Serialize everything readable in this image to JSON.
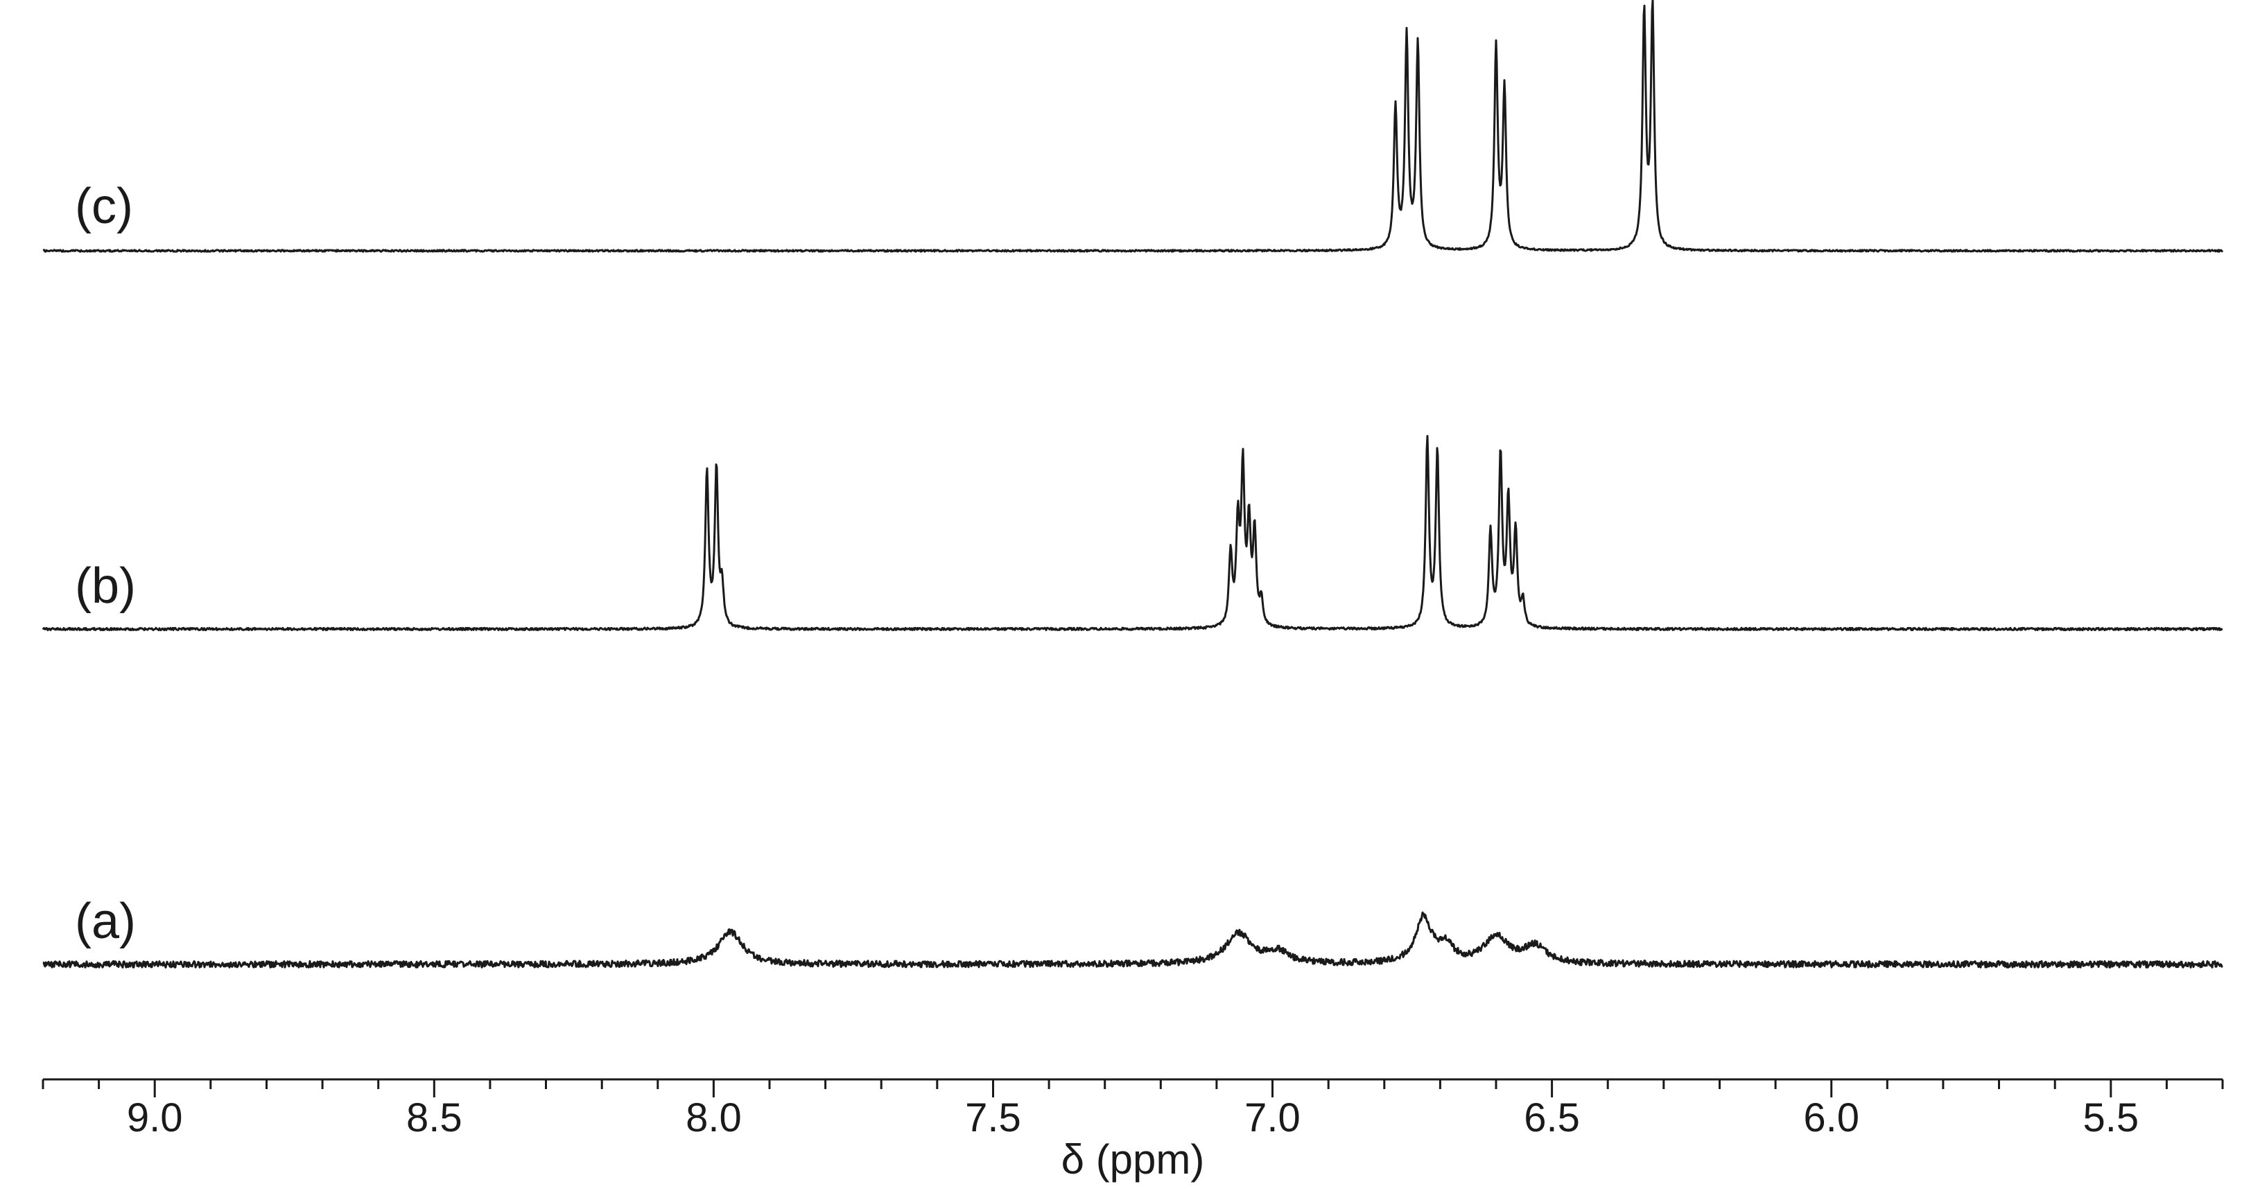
{
  "chart_data": {
    "type": "line",
    "xlabel": "δ (ppm)",
    "xlim": [
      9.2,
      5.3
    ],
    "x_reversed": true,
    "x_ticks": [
      "9.0",
      "8.5",
      "8.0",
      "7.5",
      "7.0",
      "6.5",
      "6.0",
      "5.5"
    ],
    "series": [
      {
        "name": "(c)",
        "peaks": [
          {
            "x": 6.78,
            "h": 0.59,
            "w": 0.0035
          },
          {
            "x": 6.76,
            "h": 0.88,
            "w": 0.0035
          },
          {
            "x": 6.74,
            "h": 0.85,
            "w": 0.0035
          },
          {
            "x": 6.6,
            "h": 0.84,
            "w": 0.0035
          },
          {
            "x": 6.585,
            "h": 0.66,
            "w": 0.0035
          },
          {
            "x": 6.335,
            "h": 0.98,
            "w": 0.0035
          },
          {
            "x": 6.32,
            "h": 1.0,
            "w": 0.0035
          }
        ]
      },
      {
        "name": "(b)",
        "peaks": [
          {
            "x": 8.012,
            "h": 0.73,
            "w": 0.0035
          },
          {
            "x": 7.995,
            "h": 0.74,
            "w": 0.0035
          },
          {
            "x": 7.985,
            "h": 0.18,
            "w": 0.0035
          },
          {
            "x": 7.075,
            "h": 0.34,
            "w": 0.0035
          },
          {
            "x": 7.062,
            "h": 0.46,
            "w": 0.0035
          },
          {
            "x": 7.053,
            "h": 0.72,
            "w": 0.0035
          },
          {
            "x": 7.042,
            "h": 0.46,
            "w": 0.0035
          },
          {
            "x": 7.032,
            "h": 0.43,
            "w": 0.0035
          },
          {
            "x": 7.02,
            "h": 0.12,
            "w": 0.0035
          },
          {
            "x": 6.723,
            "h": 0.88,
            "w": 0.0035
          },
          {
            "x": 6.705,
            "h": 0.82,
            "w": 0.0035
          },
          {
            "x": 6.61,
            "h": 0.44,
            "w": 0.0035
          },
          {
            "x": 6.592,
            "h": 0.8,
            "w": 0.0035
          },
          {
            "x": 6.578,
            "h": 0.58,
            "w": 0.0035
          },
          {
            "x": 6.565,
            "h": 0.44,
            "w": 0.0035
          },
          {
            "x": 6.552,
            "h": 0.12,
            "w": 0.0035
          }
        ]
      },
      {
        "name": "(a)",
        "peaks": [
          {
            "x": 7.97,
            "h": 0.17,
            "w": 0.026
          },
          {
            "x": 7.06,
            "h": 0.16,
            "w": 0.028
          },
          {
            "x": 6.99,
            "h": 0.06,
            "w": 0.022
          },
          {
            "x": 6.73,
            "h": 0.24,
            "w": 0.017
          },
          {
            "x": 6.69,
            "h": 0.09,
            "w": 0.016
          },
          {
            "x": 6.6,
            "h": 0.14,
            "w": 0.026
          },
          {
            "x": 6.53,
            "h": 0.09,
            "w": 0.024
          }
        ]
      }
    ]
  }
}
